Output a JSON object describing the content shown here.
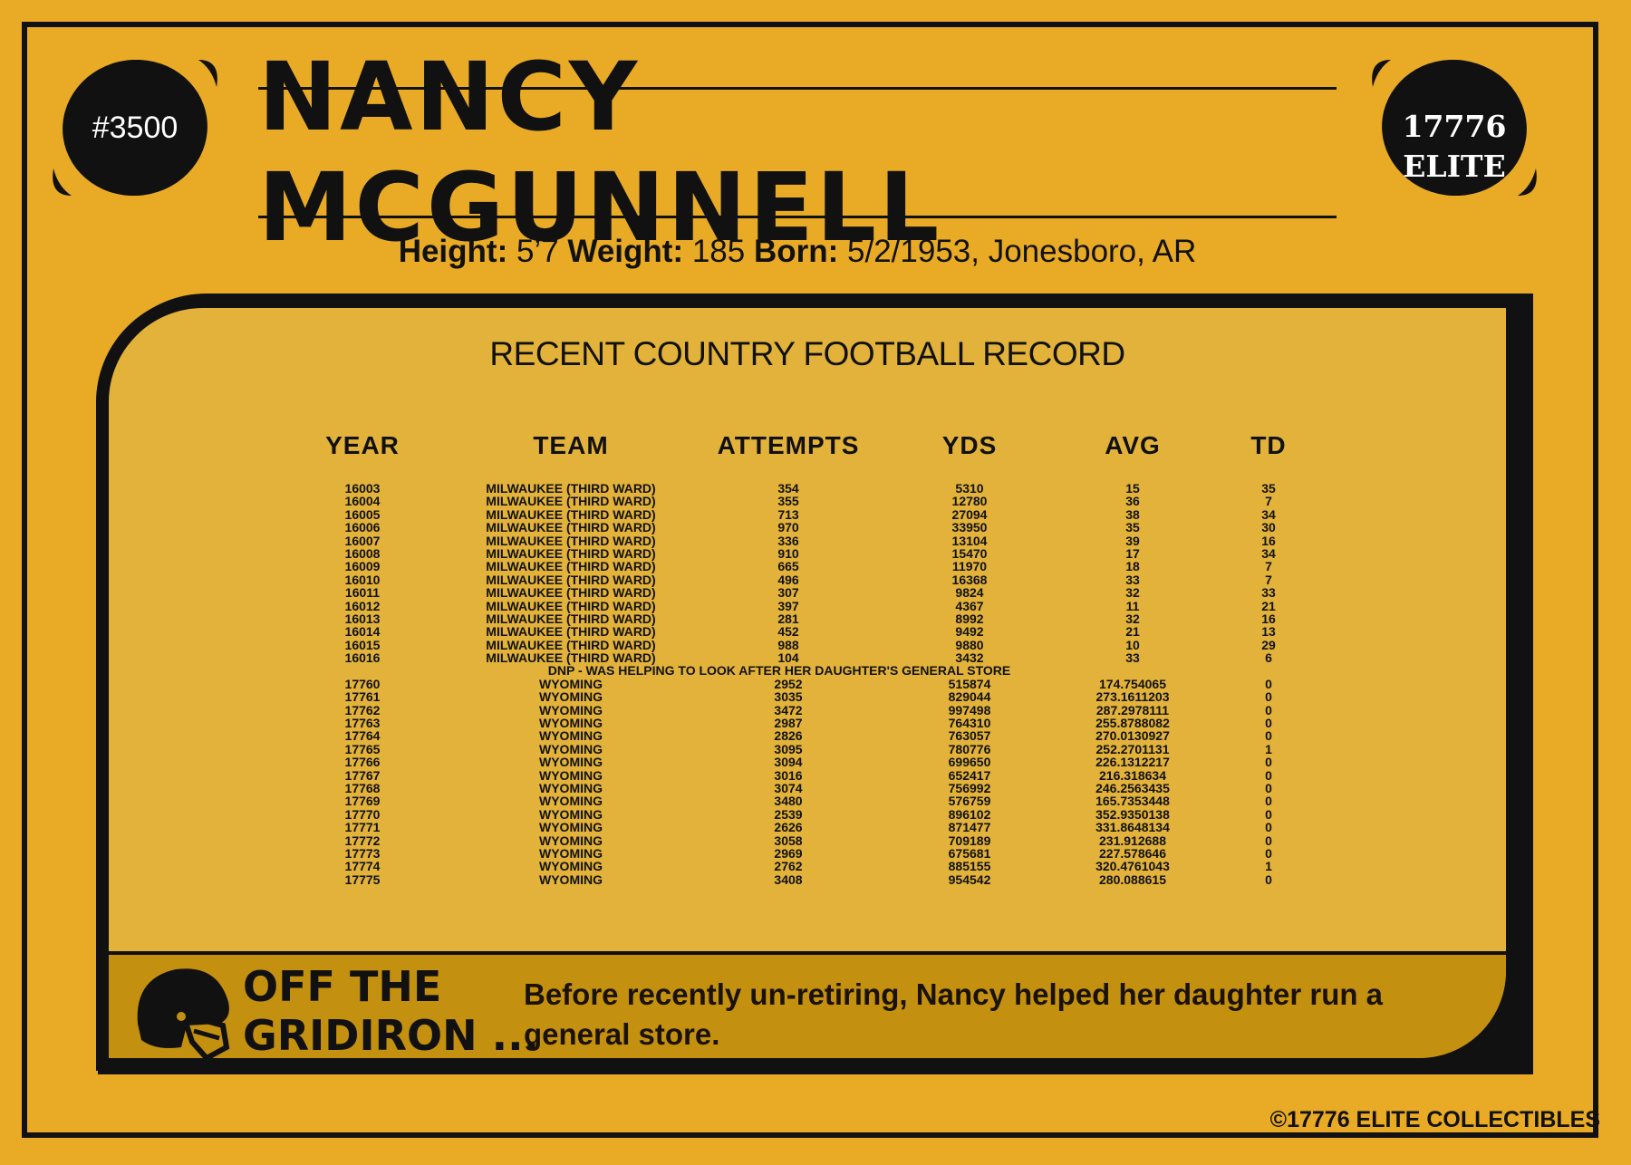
{
  "card": {
    "number": "#3500",
    "brand_line1": "17776",
    "brand_line2": "ELITE",
    "player_name": "NANCY MCGUNNELL",
    "bio": {
      "height_label": "Height:",
      "height_value": "5’7",
      "weight_label": "Weight:",
      "weight_value": "185",
      "born_label": "Born:",
      "born_value": "5/2/1953, Jonesboro, AR"
    },
    "copyright": "©17776 ELITE COLLECTIBLES"
  },
  "record": {
    "title": "RECENT COUNTRY FOOTBALL RECORD",
    "columns": [
      "YEAR",
      "TEAM",
      "ATTEMPTS",
      "YDS",
      "AVG",
      "TD"
    ],
    "rows_before": [
      [
        "16003",
        "MILWAUKEE (THIRD WARD)",
        "354",
        "5310",
        "15",
        "35"
      ],
      [
        "16004",
        "MILWAUKEE (THIRD WARD)",
        "355",
        "12780",
        "36",
        "7"
      ],
      [
        "16005",
        "MILWAUKEE (THIRD WARD)",
        "713",
        "27094",
        "38",
        "34"
      ],
      [
        "16006",
        "MILWAUKEE (THIRD WARD)",
        "970",
        "33950",
        "35",
        "30"
      ],
      [
        "16007",
        "MILWAUKEE (THIRD WARD)",
        "336",
        "13104",
        "39",
        "16"
      ],
      [
        "16008",
        "MILWAUKEE (THIRD WARD)",
        "910",
        "15470",
        "17",
        "34"
      ],
      [
        "16009",
        "MILWAUKEE (THIRD WARD)",
        "665",
        "11970",
        "18",
        "7"
      ],
      [
        "16010",
        "MILWAUKEE (THIRD WARD)",
        "496",
        "16368",
        "33",
        "7"
      ],
      [
        "16011",
        "MILWAUKEE (THIRD WARD)",
        "307",
        "9824",
        "32",
        "33"
      ],
      [
        "16012",
        "MILWAUKEE (THIRD WARD)",
        "397",
        "4367",
        "11",
        "21"
      ],
      [
        "16013",
        "MILWAUKEE (THIRD WARD)",
        "281",
        "8992",
        "32",
        "16"
      ],
      [
        "16014",
        "MILWAUKEE (THIRD WARD)",
        "452",
        "9492",
        "21",
        "13"
      ],
      [
        "16015",
        "MILWAUKEE (THIRD WARD)",
        "988",
        "9880",
        "10",
        "29"
      ],
      [
        "16016",
        "MILWAUKEE (THIRD WARD)",
        "104",
        "3432",
        "33",
        "6"
      ]
    ],
    "dnp_note": "DNP - WAS HELPING TO LOOK AFTER HER DAUGHTER'S GENERAL STORE",
    "rows_after": [
      [
        "17760",
        "WYOMING",
        "2952",
        "515874",
        "174.754065",
        "0"
      ],
      [
        "17761",
        "WYOMING",
        "3035",
        "829044",
        "273.1611203",
        "0"
      ],
      [
        "17762",
        "WYOMING",
        "3472",
        "997498",
        "287.2978111",
        "0"
      ],
      [
        "17763",
        "WYOMING",
        "2987",
        "764310",
        "255.8788082",
        "0"
      ],
      [
        "17764",
        "WYOMING",
        "2826",
        "763057",
        "270.0130927",
        "0"
      ],
      [
        "17765",
        "WYOMING",
        "3095",
        "780776",
        "252.2701131",
        "1"
      ],
      [
        "17766",
        "WYOMING",
        "3094",
        "699650",
        "226.1312217",
        "0"
      ],
      [
        "17767",
        "WYOMING",
        "3016",
        "652417",
        "216.318634",
        "0"
      ],
      [
        "17768",
        "WYOMING",
        "3074",
        "756992",
        "246.2563435",
        "0"
      ],
      [
        "17769",
        "WYOMING",
        "3480",
        "576759",
        "165.7353448",
        "0"
      ],
      [
        "17770",
        "WYOMING",
        "2539",
        "896102",
        "352.9350138",
        "0"
      ],
      [
        "17771",
        "WYOMING",
        "2626",
        "871477",
        "331.8648134",
        "0"
      ],
      [
        "17772",
        "WYOMING",
        "3058",
        "709189",
        "231.912688",
        "0"
      ],
      [
        "17773",
        "WYOMING",
        "2969",
        "675681",
        "227.578646",
        "0"
      ],
      [
        "17774",
        "WYOMING",
        "2762",
        "885155",
        "320.4761043",
        "1"
      ],
      [
        "17775",
        "WYOMING",
        "3408",
        "954542",
        "280.088615",
        "0"
      ]
    ]
  },
  "off_the_gridiron": {
    "heading_line1": "OFF THE",
    "heading_line2": "GRIDIRON ...",
    "text": "Before recently un-retiring, Nancy helped her daughter run a general store."
  },
  "icons": {
    "left_ball": "football-icon",
    "right_ball": "football-icon",
    "helmet": "football-helmet-icon"
  },
  "colors": {
    "card_background": "#e9aa26",
    "panel_background": "#e2b23a",
    "band_background": "#c4900f",
    "ink": "#111111"
  }
}
